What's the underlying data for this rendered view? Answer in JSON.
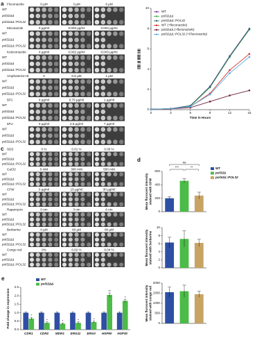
{
  "spot_assays": [
    {
      "label": "a",
      "strains": [
        "WT",
        "pol32ΔΔ",
        "pol32ΔΔ::POL32"
      ],
      "assays": [
        {
          "drug": "Fluconazole",
          "concentrations": [
            "0 µM",
            "3 µM",
            "6 µM"
          ]
        },
        {
          "drug": "Miconazole",
          "concentrations": [
            "0 µg/ml",
            "0.003 µg/ml",
            "0.004 µg/ml"
          ]
        },
        {
          "drug": "Ketoconazole",
          "concentrations": [
            "0 µg/ml",
            "0.002 µg/ml",
            "0.003 µg/ml"
          ]
        },
        {
          "drug": "Amphotericin-B",
          "concentrations": [
            "0",
            "0.5 µM",
            "1 µM"
          ]
        },
        {
          "drug": "5FC",
          "concentrations": [
            "0 µg/ml",
            "0.75 µg/ml",
            "1 µg/ml"
          ]
        },
        {
          "drug": "5FU",
          "concentrations": [
            "0 µg/ml",
            "2.5 µg/ml",
            "7 µg/ml"
          ]
        }
      ]
    },
    {
      "label": "c",
      "strains": [
        "WT",
        "pol32ΔΔ",
        "pol32ΔΔ::POL32"
      ],
      "assays": [
        {
          "drug": "SDS",
          "concentrations": [
            "0 %",
            "0.01 %",
            "0.05 %"
          ]
        },
        {
          "drug": "CaCl2",
          "concentrations": [
            "0 mM",
            "300 mM",
            "500 mM"
          ]
        },
        {
          "drug": "CFW",
          "concentrations": [
            "0 µg/ml",
            "15 µg/ml",
            "30 µg/ml"
          ]
        },
        {
          "drug": "Rapamycin",
          "concentrations": [
            "0 nm",
            "3 nm",
            "6 nm"
          ]
        },
        {
          "drug": "Berberine",
          "concentrations": [
            "0 µM",
            "60 µM",
            "80 µM"
          ]
        },
        {
          "drug": "Congo red",
          "concentrations": [
            "0%",
            "0.02 %",
            "0.04 %"
          ]
        }
      ]
    }
  ],
  "chart_data": [
    {
      "type": "line",
      "label": "b",
      "xlabel": "Time in Hours",
      "ylabel": "OD at 600 nm",
      "x": [
        0,
        3,
        6,
        9,
        12,
        15
      ],
      "xlim": [
        0,
        15
      ],
      "xticks": [
        0,
        3,
        6,
        9,
        12,
        15
      ],
      "ylim": [
        0,
        10
      ],
      "yticks": [
        0,
        2,
        4,
        6,
        8,
        10
      ],
      "series": [
        {
          "name": "WT",
          "color": "#7b3fa0",
          "values": [
            0.05,
            0.1,
            0.4,
            2.3,
            5.3,
            8.0
          ]
        },
        {
          "name": "pol32ΔΔ",
          "color": "#3cb44b",
          "values": [
            0.05,
            0.1,
            0.35,
            2.2,
            5.2,
            7.9
          ]
        },
        {
          "name": "pol32ΔΔ::POL32",
          "color": "#2f6f6f",
          "values": [
            0.05,
            0.1,
            0.4,
            2.25,
            5.25,
            7.95
          ]
        },
        {
          "name": "WT (+fluconazole)",
          "color": "#d0312d",
          "values": [
            0.05,
            0.1,
            0.3,
            1.6,
            3.9,
            5.5
          ]
        },
        {
          "name": "pol32ΔΔ (+fluconazole)",
          "color": "#6b1f3a",
          "values": [
            0.05,
            0.08,
            0.2,
            0.8,
            1.4,
            1.9
          ]
        },
        {
          "name": "pol32ΔΔ::POL32 (+Fluconazole)",
          "color": "#5dade2",
          "values": [
            0.05,
            0.1,
            0.3,
            1.5,
            3.6,
            5.2
          ]
        }
      ]
    },
    {
      "type": "bar",
      "label": "d",
      "ylabel": [
        "Mean flurocent intensity",
        "stained with CFW"
      ],
      "ylim": [
        0,
        600
      ],
      "yticks": [
        0,
        200,
        400,
        600
      ],
      "significance": [
        "ns",
        "***",
        "**"
      ],
      "series": [
        {
          "name": "WT",
          "color": "#2e4fa3",
          "values": [
            200
          ],
          "errors": [
            20
          ]
        },
        {
          "name": "pol32Δ",
          "color": "#4cbb47",
          "values": [
            460
          ],
          "errors": [
            30
          ]
        },
        {
          "name": "pol32Δ::POL32",
          "color": "#c8a464",
          "values": [
            240
          ],
          "errors": [
            50
          ]
        }
      ]
    },
    {
      "type": "bar",
      "ylabel": [
        "Mean flurocent intensity",
        "stained with berberine"
      ],
      "ylim": [
        0,
        10
      ],
      "yticks": [
        0,
        2,
        4,
        6,
        8,
        10
      ],
      "series": [
        {
          "color": "#2e4fa3",
          "values": [
            6.3
          ],
          "errors": [
            1.3
          ]
        },
        {
          "color": "#4cbb47",
          "values": [
            7.2
          ],
          "errors": [
            2.0
          ]
        },
        {
          "color": "#c8a464",
          "values": [
            6.2
          ],
          "errors": [
            0.9
          ]
        }
      ]
    },
    {
      "type": "bar",
      "ylabel": [
        "Mean flurocent intensity",
        "stained with congo red"
      ],
      "ylim": [
        0,
        2000
      ],
      "yticks": [
        0,
        500,
        1000,
        1500,
        2000
      ],
      "series": [
        {
          "color": "#2e4fa3",
          "values": [
            1550
          ],
          "errors": [
            250
          ]
        },
        {
          "color": "#4cbb47",
          "values": [
            1600
          ],
          "errors": [
            300
          ]
        },
        {
          "color": "#c8a464",
          "values": [
            1450
          ],
          "errors": [
            150
          ]
        }
      ]
    },
    {
      "type": "bar",
      "label": "e",
      "ylabel": "Fold change in expression",
      "categories": [
        "CDR1",
        "CDR2",
        "MDR1",
        "ERG11",
        "ERG3",
        "HSP90",
        "HSP30"
      ],
      "ylim": [
        0,
        2.5
      ],
      "yticks": [
        {
          "value": 0,
          "label": "0.0"
        },
        {
          "value": 0.5,
          "label": "0.5"
        },
        {
          "value": 1,
          "label": "1.0"
        },
        {
          "value": 1.5,
          "label": "1.5"
        },
        {
          "value": 2,
          "label": "2.0"
        },
        {
          "value": 2.5,
          "label": "2.5"
        }
      ],
      "series": [
        {
          "name": "WT",
          "color": "#2e4fa3",
          "values": [
            1,
            1,
            1,
            1,
            1,
            1,
            1
          ],
          "errors": [
            0.05,
            0.05,
            0.05,
            0.05,
            0.05,
            0.05,
            0.05
          ]
        },
        {
          "name": "pol32ΔΔ",
          "color": "#4cbb47",
          "values": [
            0.65,
            0.4,
            0.35,
            0.4,
            0.45,
            2.05,
            1.7
          ],
          "errors": [
            0.08,
            0.06,
            0.05,
            0.06,
            0.06,
            0.12,
            0.1
          ],
          "significance": [
            "*",
            "*",
            "*",
            "*",
            "*",
            "**",
            "*"
          ]
        }
      ]
    }
  ]
}
